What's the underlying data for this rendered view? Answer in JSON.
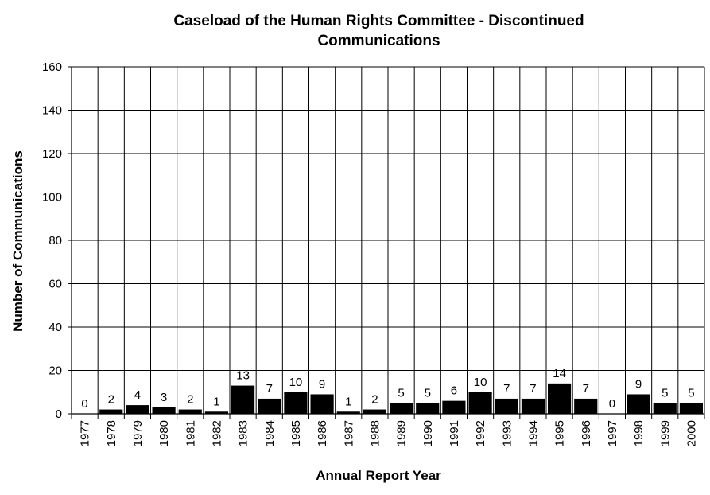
{
  "chart_data": {
    "type": "bar",
    "title": [
      "Caseload of the Human Rights Committee - Discontinued",
      "Communications"
    ],
    "xlabel": "Annual Report Year",
    "ylabel": "Number of Communications",
    "ylim": [
      0,
      160
    ],
    "yticks": [
      "0",
      "20",
      "40",
      "60",
      "80",
      "100",
      "120",
      "140",
      "160"
    ],
    "categories": [
      "1977",
      "1978",
      "1979",
      "1980",
      "1981",
      "1982",
      "1983",
      "1984",
      "1985",
      "1986",
      "1987",
      "1988",
      "1989",
      "1990",
      "1991",
      "1992",
      "1993",
      "1994",
      "1995",
      "1996",
      "1997",
      "1998",
      "1999",
      "2000"
    ],
    "values": [
      0,
      2,
      4,
      3,
      2,
      1,
      13,
      7,
      10,
      9,
      1,
      2,
      5,
      5,
      6,
      10,
      7,
      7,
      14,
      7,
      0,
      9,
      5,
      5
    ],
    "data_labels": [
      "0",
      "2",
      "4",
      "3",
      "2",
      "1",
      "13",
      "7",
      "10",
      "9",
      "1",
      "2",
      "5",
      "5",
      "6",
      "10",
      "7",
      "7",
      "14",
      "7",
      "0",
      "9",
      "5",
      "5"
    ],
    "grid": true,
    "legend": "none",
    "bar_color": "#000000"
  }
}
